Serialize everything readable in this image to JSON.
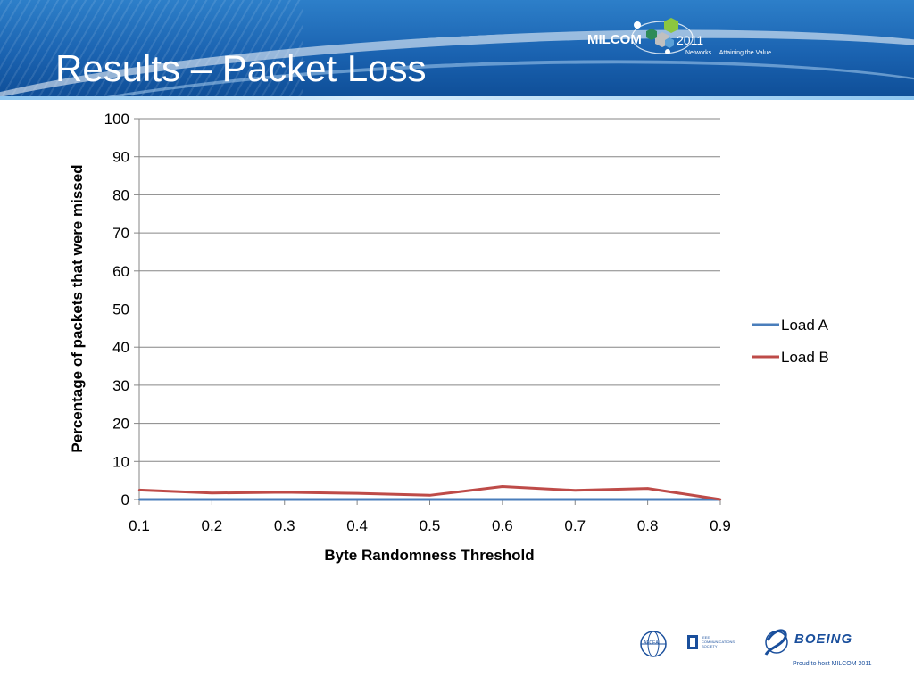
{
  "slide": {
    "title": "Results – Packet Loss"
  },
  "branding": {
    "conference_name": "MILCOM",
    "conference_year": "2011",
    "tagline": "Networks… Attaining the Value",
    "footer_text": "Proud to host MILCOM 2011",
    "ieee_label": "IEEE\nCOMMUNICATIONS\nSOCIETY",
    "afcea_label": "AFCEA",
    "boeing_label": "BOEING",
    "colors": {
      "header_blue": "#1a62b0",
      "accent_light": "#d9eefc",
      "boeing_blue": "#1a4f9c"
    }
  },
  "chart_data": {
    "type": "line",
    "title": "",
    "xlabel": "Byte Randomness Threshold",
    "ylabel": "Percentage of packets that were missed",
    "x": [
      0.1,
      0.2,
      0.3,
      0.4,
      0.5,
      0.6,
      0.7,
      0.8,
      0.9
    ],
    "x_tick_labels": [
      "0.1",
      "0.2",
      "0.3",
      "0.4",
      "0.5",
      "0.6",
      "0.7",
      "0.8",
      "0.9"
    ],
    "xlim": [
      0.1,
      0.9
    ],
    "ylim": [
      0,
      100
    ],
    "y_ticks": [
      0,
      10,
      20,
      30,
      40,
      50,
      60,
      70,
      80,
      90,
      100
    ],
    "grid": "horizontal",
    "legend": "right",
    "series": [
      {
        "name": "Load A",
        "color": "#4a7ebb",
        "values": [
          0,
          0,
          0,
          0,
          0,
          0,
          0,
          0,
          0
        ]
      },
      {
        "name": "Load B",
        "color": "#be4b48",
        "values": [
          2.5,
          1.7,
          1.9,
          1.6,
          1.1,
          3.4,
          2.4,
          2.9,
          0
        ]
      }
    ]
  }
}
